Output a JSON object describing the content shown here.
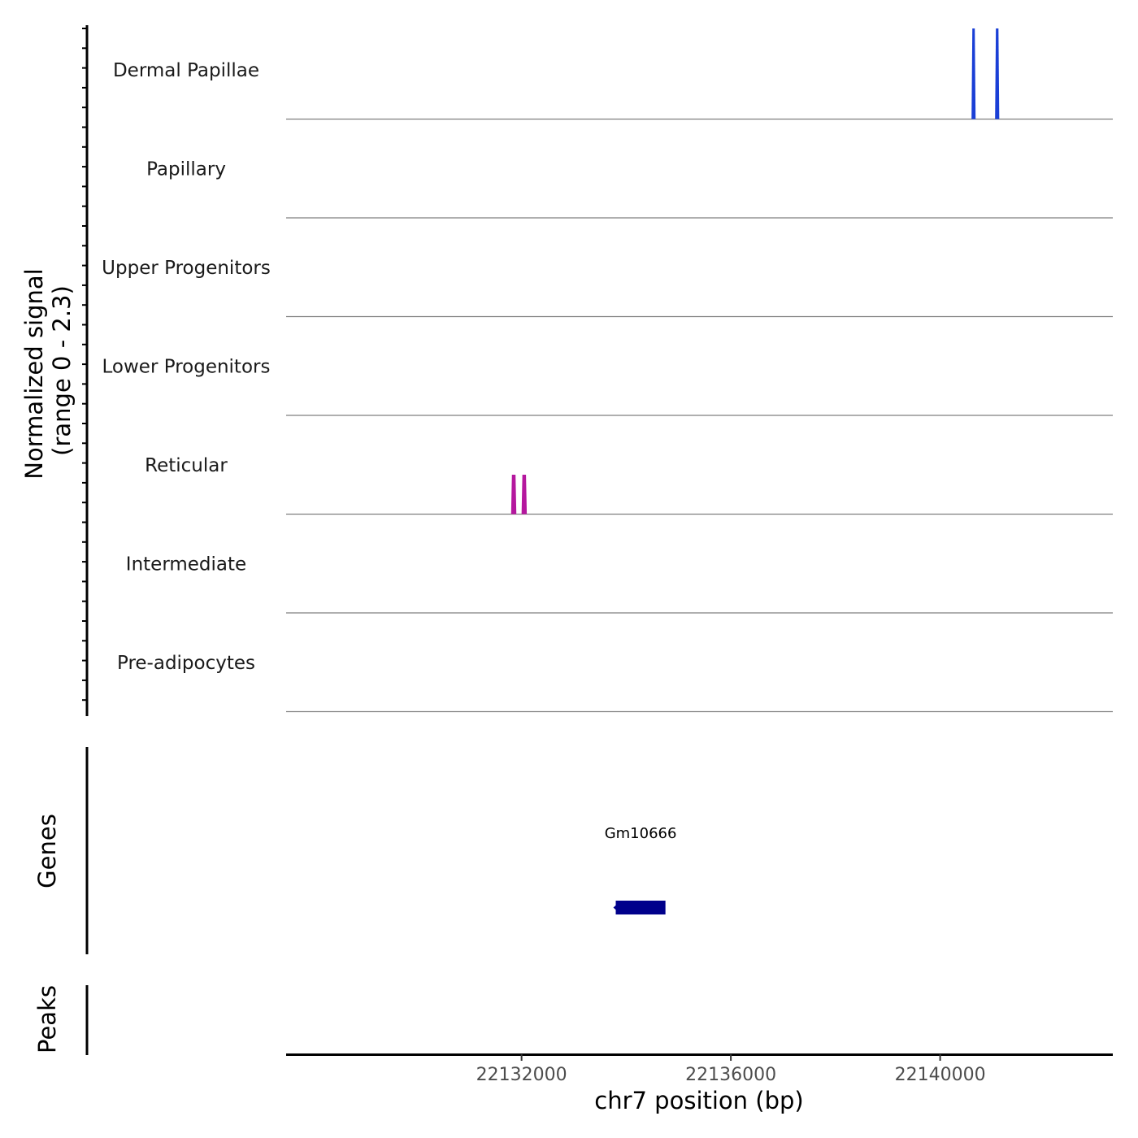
{
  "chart_data": {
    "type": "area",
    "title": "",
    "ylabel_coverage": [
      "Normalized signal",
      "(range 0 - 2.3)"
    ],
    "ylabel_genes": "Genes",
    "ylabel_peaks": "Peaks",
    "xlabel": "chr7 position (bp)",
    "chromosome": "chr7",
    "xlim": [
      22127500,
      22143300
    ],
    "x_ticks": [
      22132000,
      22136000,
      22140000
    ],
    "x_tick_labels": [
      "22132000",
      "22136000",
      "22140000"
    ],
    "signal_range": [
      0,
      2.3
    ],
    "tracks": [
      {
        "name": "Dermal Papillae",
        "color": "#1a3fd6",
        "peaks": [
          {
            "x": [
              22140600,
              22140660
            ],
            "value": 2.3
          },
          {
            "x": [
              22141050,
              22141130
            ],
            "value": 2.3
          }
        ]
      },
      {
        "name": "Papillary",
        "color": "#1a3fd6",
        "peaks": []
      },
      {
        "name": "Upper Progenitors",
        "color": "#1a3fd6",
        "peaks": []
      },
      {
        "name": "Lower Progenitors",
        "color": "#1a3fd6",
        "peaks": []
      },
      {
        "name": "Reticular",
        "color": "#b5179e",
        "peaks": [
          {
            "x": [
              22131800,
              22131900
            ],
            "value": 1.0
          },
          {
            "x": [
              22132000,
              22132100
            ],
            "value": 1.0
          }
        ]
      },
      {
        "name": "Intermediate",
        "color": "#b5179e",
        "peaks": []
      },
      {
        "name": "Pre-adipocytes",
        "color": "#b5179e",
        "peaks": []
      }
    ],
    "genes": [
      {
        "name": "Gm10666",
        "start": 22133800,
        "end": 22134750,
        "color": "#00008b"
      }
    ],
    "peaks_track": []
  }
}
